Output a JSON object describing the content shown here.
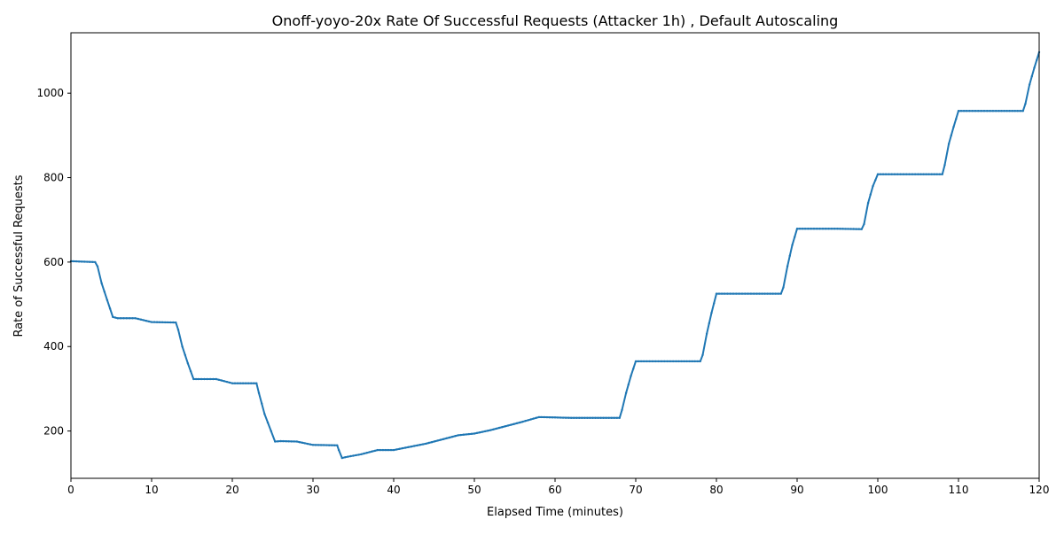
{
  "chart_data": {
    "type": "line",
    "title": "Onoff-yoyo-20x Rate Of Successful Requests (Attacker 1h) , Default Autoscaling",
    "xlabel": "Elapsed Time (minutes)",
    "ylabel": "Rate of Successful Requests",
    "xlim": [
      0,
      120
    ],
    "ylim": [
      88,
      1143
    ],
    "xticks": [
      0,
      10,
      20,
      30,
      40,
      50,
      60,
      70,
      80,
      90,
      100,
      110,
      120
    ],
    "yticks": [
      200,
      400,
      600,
      800,
      1000
    ],
    "grid": false,
    "legend": "none",
    "series_color": "#1f77b4",
    "marker": "point",
    "series": [
      {
        "x": [
          0,
          3,
          3.3,
          3.8,
          4.5,
          5.2,
          5.8,
          8,
          10,
          13,
          13.3,
          13.8,
          14.5,
          15.2,
          15.8,
          18,
          20,
          23,
          23.3,
          24,
          24.8,
          25.3,
          26,
          28,
          30,
          33,
          33.2,
          33.6,
          34,
          36,
          38,
          40,
          44,
          48,
          50,
          52,
          56,
          58,
          60,
          62,
          64,
          66,
          68,
          68.3,
          68.8,
          69.4,
          70,
          71,
          75,
          78,
          78.3,
          78.8,
          79.4,
          80,
          81,
          85,
          88,
          88.3,
          88.8,
          89.4,
          90,
          91,
          95,
          98,
          98.3,
          98.8,
          99.4,
          100,
          101,
          105,
          108,
          108.3,
          108.8,
          109.4,
          110,
          111,
          115,
          118,
          118.3,
          118.8,
          119.4,
          120
        ],
        "y": [
          602,
          600,
          590,
          550,
          510,
          470,
          467,
          467,
          458,
          457,
          440,
          400,
          360,
          323,
          323,
          323,
          313,
          313,
          290,
          240,
          200,
          175,
          176,
          175,
          167,
          166,
          155,
          136,
          138,
          145,
          155,
          155,
          170,
          190,
          194,
          202,
          222,
          233,
          232,
          231,
          231,
          231,
          231,
          250,
          290,
          330,
          365,
          365,
          365,
          365,
          380,
          430,
          480,
          525,
          525,
          525,
          525,
          540,
          590,
          640,
          679,
          679,
          679,
          678,
          690,
          740,
          780,
          808,
          808,
          808,
          808,
          830,
          880,
          920,
          958,
          958,
          958,
          958,
          975,
          1020,
          1060,
          1097
        ]
      }
    ]
  }
}
